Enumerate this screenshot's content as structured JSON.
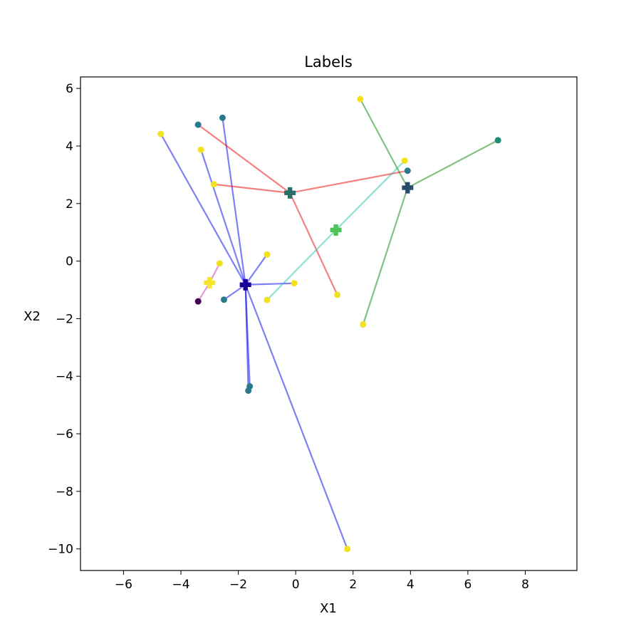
{
  "chart_data": {
    "type": "scatter",
    "title": "Labels",
    "xlabel": "X1",
    "ylabel": "X2",
    "xlim": [
      -7.5,
      9.8
    ],
    "ylim": [
      -10.75,
      6.4
    ],
    "grid": false,
    "x_ticks": [
      -6,
      -4,
      -2,
      0,
      2,
      4,
      6,
      8
    ],
    "y_ticks": [
      -10,
      -8,
      -6,
      -4,
      -2,
      0,
      2,
      4,
      6
    ],
    "x_tick_labels": [
      "−6",
      "−4",
      "−2",
      "0",
      "2",
      "4",
      "6",
      "8"
    ],
    "y_tick_labels": [
      "−10",
      "−8",
      "−6",
      "−4",
      "−2",
      "0",
      "2",
      "4",
      "6"
    ],
    "clusters": [
      {
        "line_color": "#0000ee",
        "center": {
          "x": -1.75,
          "y": -0.82,
          "color": "#1a0099"
        },
        "points": [
          {
            "x": -4.7,
            "y": 4.42,
            "color": "#f2e21e"
          },
          {
            "x": -3.3,
            "y": 3.87,
            "color": "#f2e21e"
          },
          {
            "x": -2.55,
            "y": 4.98,
            "color": "#2a7a8e"
          },
          {
            "x": -1.0,
            "y": 0.23,
            "color": "#f2e21e"
          },
          {
            "x": -0.05,
            "y": -0.77,
            "color": "#f2e21e"
          },
          {
            "x": -2.5,
            "y": -1.34,
            "color": "#2a7a8e"
          },
          {
            "x": -1.6,
            "y": -4.35,
            "color": "#2a7a8e"
          },
          {
            "x": -1.65,
            "y": -4.5,
            "color": "#2a7a8e"
          },
          {
            "x": 1.8,
            "y": -10.0,
            "color": "#f2e21e"
          }
        ]
      },
      {
        "line_color": "#ee0000",
        "center": {
          "x": -0.2,
          "y": 2.37,
          "color": "#2a6e6a"
        },
        "points": [
          {
            "x": -3.4,
            "y": 4.74,
            "color": "#2a7a8e"
          },
          {
            "x": -2.85,
            "y": 2.67,
            "color": "#f2e21e"
          },
          {
            "x": 3.9,
            "y": 3.14,
            "color": "#2a7a8e"
          },
          {
            "x": 1.45,
            "y": -1.17,
            "color": "#f2e21e"
          }
        ]
      },
      {
        "line_color": "#008800",
        "center": {
          "x": 3.9,
          "y": 2.55,
          "color": "#2a4a6a"
        },
        "points": [
          {
            "x": 2.25,
            "y": 5.63,
            "color": "#f2e21e"
          },
          {
            "x": 7.05,
            "y": 4.2,
            "color": "#1e8a78"
          },
          {
            "x": 2.35,
            "y": -2.2,
            "color": "#f2e21e"
          }
        ]
      },
      {
        "line_color": "#20c0b0",
        "center": {
          "x": 1.4,
          "y": 1.08,
          "color": "#4ec35a"
        },
        "points": [
          {
            "x": 3.8,
            "y": 3.49,
            "color": "#f2e21e"
          },
          {
            "x": -1.0,
            "y": -1.35,
            "color": "#f2e21e"
          }
        ]
      },
      {
        "line_color": "#cc33bb",
        "center": {
          "x": -3.0,
          "y": -0.75,
          "color": "#f6e62a"
        },
        "points": [
          {
            "x": -2.65,
            "y": -0.08,
            "color": "#f2e21e"
          },
          {
            "x": -3.4,
            "y": -1.4,
            "color": "#44015a"
          }
        ]
      }
    ]
  }
}
